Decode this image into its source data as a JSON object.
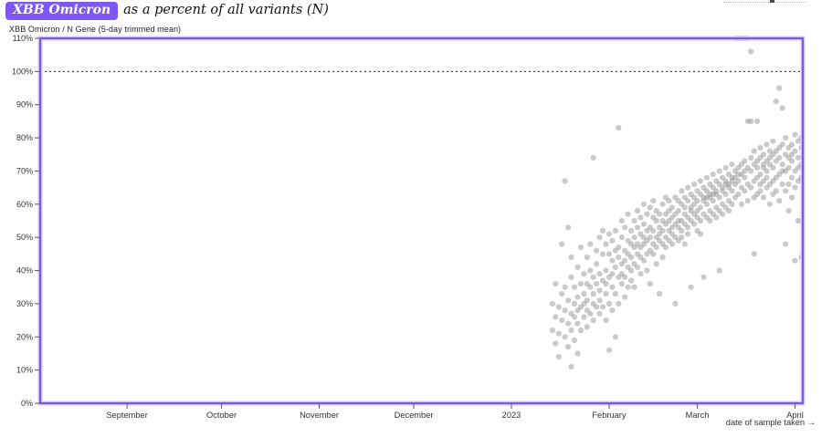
{
  "title": {
    "badge": "XBB Omicron",
    "rest": "as a percent of all variants (N)"
  },
  "subtitle": "XBB Omicron / N Gene (5-day trimmed mean)",
  "colors": {
    "accent_purple": "#7b57f2",
    "badge_purple": "#7d58f4",
    "border_halo": "#d8cdfb",
    "point_gray": "#969696",
    "axis_text": "#333333",
    "reference_line": "#222222"
  },
  "chart_data": {
    "type": "scatter",
    "title": "XBB Omicron as a percent of all variants (N)",
    "subtitle": "XBB Omicron / N Gene (5-day trimmed mean)",
    "xlabel": "date of sample taken →",
    "ylabel": "",
    "ylim": [
      0,
      110
    ],
    "y_ticks": [
      "0%",
      "10%",
      "20%",
      "30%",
      "40%",
      "50%",
      "60%",
      "70%",
      "80%",
      "90%",
      "100%",
      "110%"
    ],
    "y_tick_values": [
      0,
      10,
      20,
      30,
      40,
      50,
      60,
      70,
      80,
      90,
      100,
      110
    ],
    "reference_line_y": 100,
    "grid": false,
    "legend": "none",
    "x_ticks": [
      {
        "label": "September",
        "day": -122
      },
      {
        "label": "October",
        "day": -92
      },
      {
        "label": "November",
        "day": -61
      },
      {
        "label": "December",
        "day": -31
      },
      {
        "label": "2023",
        "day": 0
      },
      {
        "label": "February",
        "day": 31
      },
      {
        "label": "March",
        "day": 59
      },
      {
        "label": "April",
        "day": 90
      }
    ],
    "x_unit": "days since 2023-01-01, date of sample taken",
    "y_unit": "percent of all variants",
    "points": [
      [
        13,
        30
      ],
      [
        13,
        22
      ],
      [
        14,
        36
      ],
      [
        14,
        18
      ],
      [
        14,
        26
      ],
      [
        15,
        21
      ],
      [
        15,
        29
      ],
      [
        15,
        14
      ],
      [
        16,
        33
      ],
      [
        16,
        25
      ],
      [
        16,
        48
      ],
      [
        17,
        67
      ],
      [
        17,
        28
      ],
      [
        17,
        20
      ],
      [
        17,
        35
      ],
      [
        18,
        53
      ],
      [
        18,
        24
      ],
      [
        18,
        31
      ],
      [
        18,
        17
      ],
      [
        19,
        38
      ],
      [
        19,
        27
      ],
      [
        19,
        44
      ],
      [
        19,
        22
      ],
      [
        19,
        11
      ],
      [
        20,
        30
      ],
      [
        20,
        35
      ],
      [
        20,
        19
      ],
      [
        20,
        26
      ],
      [
        21,
        41
      ],
      [
        21,
        24
      ],
      [
        21,
        32
      ],
      [
        21,
        28
      ],
      [
        21,
        15
      ],
      [
        22,
        36
      ],
      [
        22,
        29
      ],
      [
        22,
        22
      ],
      [
        22,
        47
      ],
      [
        23,
        33
      ],
      [
        23,
        26
      ],
      [
        23,
        39
      ],
      [
        23,
        30
      ],
      [
        24,
        44
      ],
      [
        24,
        31
      ],
      [
        24,
        23
      ],
      [
        24,
        36
      ],
      [
        24,
        28
      ],
      [
        25,
        35
      ],
      [
        25,
        48
      ],
      [
        25,
        27
      ],
      [
        25,
        40
      ],
      [
        26,
        74
      ],
      [
        26,
        38
      ],
      [
        26,
        30
      ],
      [
        26,
        25
      ],
      [
        26,
        33
      ],
      [
        27,
        42
      ],
      [
        27,
        29
      ],
      [
        27,
        36
      ],
      [
        27,
        46
      ],
      [
        28,
        34
      ],
      [
        28,
        50
      ],
      [
        28,
        27
      ],
      [
        28,
        39
      ],
      [
        28,
        31
      ],
      [
        29,
        45
      ],
      [
        29,
        37
      ],
      [
        29,
        29
      ],
      [
        29,
        52
      ],
      [
        30,
        40
      ],
      [
        30,
        33
      ],
      [
        30,
        48
      ],
      [
        30,
        36
      ],
      [
        30,
        25
      ],
      [
        31,
        16
      ],
      [
        31,
        38
      ],
      [
        31,
        45
      ],
      [
        31,
        30
      ],
      [
        31,
        51
      ],
      [
        32,
        43
      ],
      [
        32,
        35
      ],
      [
        32,
        28
      ],
      [
        32,
        49
      ],
      [
        32,
        39
      ],
      [
        33,
        52
      ],
      [
        33,
        41
      ],
      [
        33,
        33
      ],
      [
        33,
        46
      ],
      [
        33,
        20
      ],
      [
        34,
        83
      ],
      [
        34,
        47
      ],
      [
        34,
        38
      ],
      [
        34,
        30
      ],
      [
        34,
        44
      ],
      [
        35,
        50
      ],
      [
        35,
        42
      ],
      [
        35,
        36
      ],
      [
        35,
        55
      ],
      [
        35,
        39
      ],
      [
        36,
        46
      ],
      [
        36,
        38
      ],
      [
        36,
        53
      ],
      [
        36,
        43
      ],
      [
        36,
        32
      ],
      [
        37,
        49
      ],
      [
        37,
        41
      ],
      [
        37,
        57
      ],
      [
        37,
        45
      ],
      [
        37,
        35
      ],
      [
        38,
        52
      ],
      [
        38,
        44
      ],
      [
        38,
        37
      ],
      [
        38,
        48
      ],
      [
        38,
        40
      ],
      [
        39,
        55
      ],
      [
        39,
        47
      ],
      [
        39,
        42
      ],
      [
        39,
        50
      ],
      [
        39,
        35
      ],
      [
        40,
        48
      ],
      [
        40,
        53
      ],
      [
        40,
        45
      ],
      [
        40,
        58
      ],
      [
        40,
        41
      ],
      [
        41,
        51
      ],
      [
        41,
        44
      ],
      [
        41,
        56
      ],
      [
        41,
        47
      ],
      [
        41,
        39
      ],
      [
        42,
        54
      ],
      [
        42,
        48
      ],
      [
        42,
        60
      ],
      [
        42,
        43
      ],
      [
        42,
        50
      ],
      [
        43,
        57
      ],
      [
        43,
        49
      ],
      [
        43,
        45
      ],
      [
        43,
        52
      ],
      [
        43,
        40
      ],
      [
        44,
        53
      ],
      [
        44,
        46
      ],
      [
        44,
        59
      ],
      [
        44,
        50
      ],
      [
        44,
        36
      ],
      [
        45,
        56
      ],
      [
        45,
        48
      ],
      [
        45,
        52
      ],
      [
        45,
        61
      ],
      [
        45,
        45
      ],
      [
        46,
        50
      ],
      [
        46,
        55
      ],
      [
        46,
        47
      ],
      [
        46,
        58
      ],
      [
        46,
        42
      ],
      [
        47,
        53
      ],
      [
        47,
        49
      ],
      [
        47,
        57
      ],
      [
        47,
        51
      ],
      [
        47,
        33
      ],
      [
        48,
        60
      ],
      [
        48,
        52
      ],
      [
        48,
        48
      ],
      [
        48,
        55
      ],
      [
        48,
        44
      ],
      [
        49,
        57
      ],
      [
        49,
        50
      ],
      [
        49,
        54
      ],
      [
        49,
        62
      ],
      [
        49,
        47
      ],
      [
        50,
        52
      ],
      [
        50,
        58
      ],
      [
        50,
        49
      ],
      [
        50,
        55
      ],
      [
        50,
        61
      ],
      [
        51,
        56
      ],
      [
        51,
        51
      ],
      [
        51,
        59
      ],
      [
        51,
        48
      ],
      [
        51,
        53
      ],
      [
        52,
        62
      ],
      [
        52,
        54
      ],
      [
        52,
        50
      ],
      [
        52,
        57
      ],
      [
        52,
        30
      ],
      [
        53,
        58
      ],
      [
        53,
        53
      ],
      [
        53,
        61
      ],
      [
        53,
        49
      ],
      [
        53,
        55
      ],
      [
        54,
        60
      ],
      [
        54,
        55
      ],
      [
        54,
        52
      ],
      [
        54,
        64
      ],
      [
        54,
        50
      ],
      [
        55,
        57
      ],
      [
        55,
        62
      ],
      [
        55,
        54
      ],
      [
        55,
        59
      ],
      [
        55,
        48
      ],
      [
        56,
        61
      ],
      [
        56,
        56
      ],
      [
        56,
        53
      ],
      [
        56,
        65
      ],
      [
        56,
        51
      ],
      [
        57,
        59
      ],
      [
        57,
        63
      ],
      [
        57,
        55
      ],
      [
        57,
        58
      ],
      [
        57,
        35
      ],
      [
        58,
        62
      ],
      [
        58,
        57
      ],
      [
        58,
        66
      ],
      [
        58,
        54
      ],
      [
        58,
        60
      ],
      [
        59,
        58
      ],
      [
        59,
        64
      ],
      [
        59,
        56
      ],
      [
        59,
        61
      ],
      [
        59,
        52
      ],
      [
        60,
        63
      ],
      [
        60,
        59
      ],
      [
        60,
        67
      ],
      [
        60,
        55
      ],
      [
        60,
        51
      ],
      [
        61,
        61
      ],
      [
        61,
        65
      ],
      [
        61,
        57
      ],
      [
        61,
        62
      ],
      [
        61,
        38
      ],
      [
        62,
        64
      ],
      [
        62,
        60
      ],
      [
        62,
        68
      ],
      [
        62,
        56
      ],
      [
        62,
        62
      ],
      [
        63,
        62
      ],
      [
        63,
        66
      ],
      [
        63,
        58
      ],
      [
        63,
        63
      ],
      [
        63,
        55
      ],
      [
        64,
        65
      ],
      [
        64,
        61
      ],
      [
        64,
        69
      ],
      [
        64,
        57
      ],
      [
        64,
        63
      ],
      [
        65,
        63
      ],
      [
        65,
        67
      ],
      [
        65,
        59
      ],
      [
        65,
        64
      ],
      [
        65,
        56
      ],
      [
        66,
        66
      ],
      [
        66,
        62
      ],
      [
        66,
        70
      ],
      [
        66,
        58
      ],
      [
        66,
        40
      ],
      [
        67,
        64
      ],
      [
        67,
        68
      ],
      [
        67,
        60
      ],
      [
        67,
        65
      ],
      [
        67,
        57
      ],
      [
        68,
        67
      ],
      [
        68,
        63
      ],
      [
        68,
        71
      ],
      [
        68,
        59
      ],
      [
        68,
        66
      ],
      [
        69,
        65
      ],
      [
        69,
        69
      ],
      [
        69,
        61
      ],
      [
        69,
        66
      ],
      [
        69,
        58
      ],
      [
        70,
        68
      ],
      [
        70,
        64
      ],
      [
        70,
        72
      ],
      [
        70,
        60
      ],
      [
        70,
        67
      ],
      [
        71,
        110
      ],
      [
        71,
        66
      ],
      [
        71,
        70
      ],
      [
        71,
        62
      ],
      [
        71,
        68
      ],
      [
        72,
        110
      ],
      [
        72,
        67
      ],
      [
        72,
        71
      ],
      [
        72,
        63
      ],
      [
        72,
        69
      ],
      [
        73,
        110
      ],
      [
        73,
        69
      ],
      [
        73,
        65
      ],
      [
        73,
        72
      ],
      [
        73,
        60
      ],
      [
        74,
        110
      ],
      [
        74,
        68
      ],
      [
        74,
        73
      ],
      [
        74,
        64
      ],
      [
        74,
        70
      ],
      [
        75,
        110
      ],
      [
        75,
        66
      ],
      [
        75,
        71
      ],
      [
        75,
        61
      ],
      [
        75,
        85
      ],
      [
        76,
        106
      ],
      [
        76,
        85
      ],
      [
        76,
        70
      ],
      [
        76,
        74
      ],
      [
        76,
        65
      ],
      [
        77,
        72
      ],
      [
        77,
        67
      ],
      [
        77,
        76
      ],
      [
        77,
        62
      ],
      [
        77,
        45
      ],
      [
        78,
        85
      ],
      [
        78,
        68
      ],
      [
        78,
        73
      ],
      [
        78,
        63
      ],
      [
        78,
        71
      ],
      [
        79,
        74
      ],
      [
        79,
        69
      ],
      [
        79,
        64
      ],
      [
        79,
        77
      ],
      [
        79,
        66
      ],
      [
        80,
        71
      ],
      [
        80,
        75
      ],
      [
        80,
        67
      ],
      [
        80,
        72
      ],
      [
        80,
        62
      ],
      [
        81,
        78
      ],
      [
        81,
        70
      ],
      [
        81,
        73
      ],
      [
        81,
        65
      ],
      [
        81,
        68
      ],
      [
        82,
        72
      ],
      [
        82,
        76
      ],
      [
        82,
        66
      ],
      [
        82,
        74
      ],
      [
        82,
        60
      ],
      [
        83,
        79
      ],
      [
        83,
        71
      ],
      [
        83,
        67
      ],
      [
        83,
        75
      ],
      [
        83,
        63
      ],
      [
        84,
        91
      ],
      [
        84,
        73
      ],
      [
        84,
        68
      ],
      [
        84,
        76
      ],
      [
        84,
        64
      ],
      [
        85,
        95
      ],
      [
        85,
        74
      ],
      [
        85,
        69
      ],
      [
        85,
        77
      ],
      [
        85,
        61
      ],
      [
        86,
        89
      ],
      [
        86,
        72
      ],
      [
        86,
        78
      ],
      [
        86,
        66
      ],
      [
        86,
        70
      ],
      [
        87,
        75
      ],
      [
        87,
        70
      ],
      [
        87,
        80
      ],
      [
        87,
        64
      ],
      [
        87,
        48
      ],
      [
        88,
        77
      ],
      [
        88,
        71
      ],
      [
        88,
        66
      ],
      [
        88,
        74
      ],
      [
        88,
        58
      ],
      [
        89,
        73
      ],
      [
        89,
        78
      ],
      [
        89,
        68
      ],
      [
        89,
        75
      ],
      [
        89,
        62
      ],
      [
        90,
        76
      ],
      [
        90,
        70
      ],
      [
        90,
        81
      ],
      [
        90,
        65
      ],
      [
        90,
        43
      ],
      [
        91,
        74
      ],
      [
        91,
        79
      ],
      [
        91,
        67
      ],
      [
        91,
        71
      ],
      [
        91,
        55
      ],
      [
        92,
        77
      ],
      [
        92,
        72
      ],
      [
        92,
        68
      ],
      [
        92,
        80
      ],
      [
        92,
        44
      ],
      [
        93,
        75
      ],
      [
        93,
        70
      ],
      [
        93,
        63
      ],
      [
        93,
        78
      ],
      [
        93,
        66
      ]
    ]
  }
}
